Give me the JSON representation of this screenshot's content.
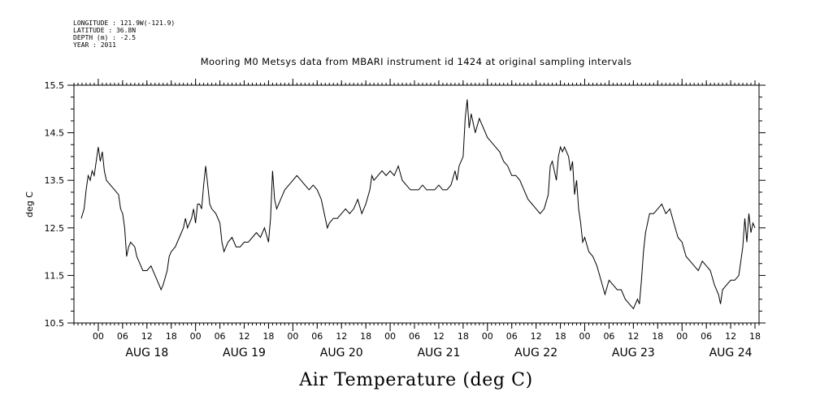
{
  "header": {
    "longitude": "LONGITUDE : 121.9W(-121.9)",
    "latitude": "LATITUDE : 36.8N",
    "depth": "DEPTH (m) : -2.5",
    "year": "YEAR : 2011"
  },
  "chart_data": {
    "type": "line",
    "title": "Mooring M0 Metsys data from MBARI instrument id 1424 at original sampling intervals",
    "xlabel": "Air Temperature (deg C)",
    "ylabel": "deg C",
    "ylim": [
      10.5,
      15.5
    ],
    "yticks": [
      "10.5",
      "11.5",
      "12.5",
      "13.5",
      "14.5",
      "15.5"
    ],
    "xlim_hours": [
      -6,
      163
    ],
    "x_units": "hours since AUG 18 00:00, 2011",
    "hour_tick_labels": [
      "00",
      "06",
      "12",
      "18",
      "00",
      "06",
      "12",
      "18",
      "00",
      "06",
      "12",
      "18",
      "00",
      "06",
      "12",
      "18",
      "00",
      "06",
      "12",
      "18",
      "00",
      "06",
      "12",
      "18",
      "00",
      "06",
      "12",
      "18"
    ],
    "day_labels": [
      "AUG 18",
      "AUG 19",
      "AUG 20",
      "AUG 21",
      "AUG 22",
      "AUG 23",
      "AUG 24"
    ],
    "grid": false,
    "series": [
      {
        "values": [
          [
            -4.2,
            12.7
          ],
          [
            -3.5,
            12.9
          ],
          [
            -3,
            13.3
          ],
          [
            -2.5,
            13.6
          ],
          [
            -2,
            13.5
          ],
          [
            -1.5,
            13.7
          ],
          [
            -1,
            13.6
          ],
          [
            -0.5,
            13.9
          ],
          [
            0,
            14.2
          ],
          [
            0.5,
            13.9
          ],
          [
            1,
            14.1
          ],
          [
            1.5,
            13.7
          ],
          [
            2,
            13.5
          ],
          [
            3,
            13.4
          ],
          [
            4,
            13.3
          ],
          [
            5,
            13.2
          ],
          [
            5.5,
            12.9
          ],
          [
            6,
            12.8
          ],
          [
            6.5,
            12.5
          ],
          [
            7,
            11.9
          ],
          [
            7.5,
            12.1
          ],
          [
            8,
            12.2
          ],
          [
            9,
            12.1
          ],
          [
            9.5,
            11.9
          ],
          [
            10,
            11.8
          ],
          [
            11,
            11.6
          ],
          [
            12,
            11.6
          ],
          [
            13,
            11.7
          ],
          [
            14,
            11.5
          ],
          [
            15,
            11.3
          ],
          [
            15.5,
            11.2
          ],
          [
            16,
            11.3
          ],
          [
            17,
            11.6
          ],
          [
            17.5,
            11.9
          ],
          [
            18,
            12
          ],
          [
            19,
            12.1
          ],
          [
            20,
            12.3
          ],
          [
            21,
            12.5
          ],
          [
            21.5,
            12.7
          ],
          [
            22,
            12.5
          ],
          [
            23,
            12.7
          ],
          [
            23.5,
            12.9
          ],
          [
            24,
            12.6
          ],
          [
            24.5,
            13
          ],
          [
            25,
            13
          ],
          [
            25.5,
            12.9
          ],
          [
            26,
            13.4
          ],
          [
            26.5,
            13.8
          ],
          [
            27,
            13.4
          ],
          [
            27.5,
            13
          ],
          [
            28,
            12.9
          ],
          [
            29,
            12.8
          ],
          [
            30,
            12.6
          ],
          [
            30.5,
            12.2
          ],
          [
            31,
            12
          ],
          [
            31.5,
            12.1
          ],
          [
            32,
            12.2
          ],
          [
            33,
            12.3
          ],
          [
            34,
            12.1
          ],
          [
            35,
            12.1
          ],
          [
            36,
            12.2
          ],
          [
            37,
            12.2
          ],
          [
            38,
            12.3
          ],
          [
            39,
            12.4
          ],
          [
            40,
            12.3
          ],
          [
            41,
            12.5
          ],
          [
            42,
            12.2
          ],
          [
            42.5,
            12.7
          ],
          [
            43,
            13.7
          ],
          [
            43.5,
            13.1
          ],
          [
            44,
            12.9
          ],
          [
            45,
            13.1
          ],
          [
            46,
            13.3
          ],
          [
            47,
            13.4
          ],
          [
            48,
            13.5
          ],
          [
            49,
            13.6
          ],
          [
            50,
            13.5
          ],
          [
            51,
            13.4
          ],
          [
            52,
            13.3
          ],
          [
            53,
            13.4
          ],
          [
            54,
            13.3
          ],
          [
            55,
            13.1
          ],
          [
            55.5,
            12.9
          ],
          [
            56,
            12.7
          ],
          [
            56.5,
            12.5
          ],
          [
            57,
            12.6
          ],
          [
            58,
            12.7
          ],
          [
            59,
            12.7
          ],
          [
            60,
            12.8
          ],
          [
            61,
            12.9
          ],
          [
            62,
            12.8
          ],
          [
            63,
            12.9
          ],
          [
            64,
            13.1
          ],
          [
            65,
            12.8
          ],
          [
            66,
            13
          ],
          [
            67,
            13.3
          ],
          [
            67.5,
            13.6
          ],
          [
            68,
            13.5
          ],
          [
            69,
            13.6
          ],
          [
            70,
            13.7
          ],
          [
            71,
            13.6
          ],
          [
            72,
            13.7
          ],
          [
            73,
            13.6
          ],
          [
            74,
            13.8
          ],
          [
            75,
            13.5
          ],
          [
            76,
            13.4
          ],
          [
            77,
            13.3
          ],
          [
            78,
            13.3
          ],
          [
            79,
            13.3
          ],
          [
            80,
            13.4
          ],
          [
            81,
            13.3
          ],
          [
            82,
            13.3
          ],
          [
            83,
            13.3
          ],
          [
            84,
            13.4
          ],
          [
            85,
            13.3
          ],
          [
            86,
            13.3
          ],
          [
            87,
            13.4
          ],
          [
            88,
            13.7
          ],
          [
            88.5,
            13.5
          ],
          [
            89,
            13.8
          ],
          [
            90,
            14
          ],
          [
            90.5,
            14.8
          ],
          [
            91,
            15.2
          ],
          [
            91.5,
            14.6
          ],
          [
            92,
            14.9
          ],
          [
            92.5,
            14.7
          ],
          [
            93,
            14.5
          ],
          [
            94,
            14.8
          ],
          [
            95,
            14.6
          ],
          [
            96,
            14.4
          ],
          [
            97,
            14.3
          ],
          [
            98,
            14.2
          ],
          [
            99,
            14.1
          ],
          [
            100,
            13.9
          ],
          [
            101,
            13.8
          ],
          [
            102,
            13.6
          ],
          [
            103,
            13.6
          ],
          [
            104,
            13.5
          ],
          [
            105,
            13.3
          ],
          [
            106,
            13.1
          ],
          [
            107,
            13
          ],
          [
            108,
            12.9
          ],
          [
            109,
            12.8
          ],
          [
            110,
            12.9
          ],
          [
            111,
            13.2
          ],
          [
            111.5,
            13.8
          ],
          [
            112,
            13.9
          ],
          [
            113,
            13.5
          ],
          [
            113.5,
            14
          ],
          [
            114,
            14.2
          ],
          [
            114.5,
            14.1
          ],
          [
            115,
            14.2
          ],
          [
            116,
            14
          ],
          [
            116.5,
            13.7
          ],
          [
            117,
            13.9
          ],
          [
            117.5,
            13.2
          ],
          [
            118,
            13.5
          ],
          [
            118.5,
            12.9
          ],
          [
            119,
            12.6
          ],
          [
            119.5,
            12.2
          ],
          [
            120,
            12.3
          ],
          [
            121,
            12
          ],
          [
            122,
            11.9
          ],
          [
            123,
            11.7
          ],
          [
            124,
            11.4
          ],
          [
            125,
            11.1
          ],
          [
            126,
            11.4
          ],
          [
            127,
            11.3
          ],
          [
            128,
            11.2
          ],
          [
            129,
            11.2
          ],
          [
            130,
            11
          ],
          [
            131,
            10.9
          ],
          [
            132,
            10.8
          ],
          [
            133,
            11
          ],
          [
            133.5,
            10.9
          ],
          [
            134,
            11.4
          ],
          [
            134.5,
            12
          ],
          [
            135,
            12.4
          ],
          [
            136,
            12.8
          ],
          [
            137,
            12.8
          ],
          [
            138,
            12.9
          ],
          [
            139,
            13
          ],
          [
            140,
            12.8
          ],
          [
            141,
            12.9
          ],
          [
            142,
            12.6
          ],
          [
            143,
            12.3
          ],
          [
            144,
            12.2
          ],
          [
            145,
            11.9
          ],
          [
            146,
            11.8
          ],
          [
            147,
            11.7
          ],
          [
            148,
            11.6
          ],
          [
            149,
            11.8
          ],
          [
            150,
            11.7
          ],
          [
            151,
            11.6
          ],
          [
            152,
            11.3
          ],
          [
            153,
            11.1
          ],
          [
            153.5,
            10.9
          ],
          [
            154,
            11.2
          ],
          [
            155,
            11.3
          ],
          [
            156,
            11.4
          ],
          [
            157,
            11.4
          ],
          [
            158,
            11.5
          ],
          [
            158.5,
            11.8
          ],
          [
            159,
            12.1
          ],
          [
            159.5,
            12.7
          ],
          [
            160,
            12.2
          ],
          [
            160.5,
            12.8
          ],
          [
            161,
            12.4
          ],
          [
            161.5,
            12.6
          ],
          [
            162,
            12.5
          ]
        ]
      }
    ]
  }
}
